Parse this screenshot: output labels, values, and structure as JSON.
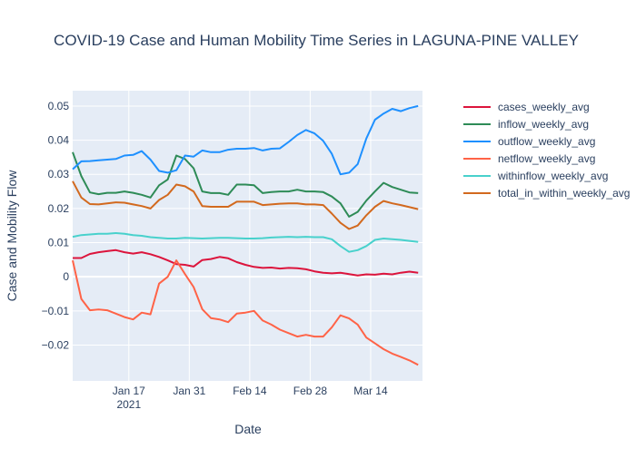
{
  "chart_data": {
    "type": "line",
    "title": "COVID-19 Case and Human Mobility Time Series in LAGUNA-PINE VALLEY",
    "xlabel": "Date",
    "ylabel": "Case and Mobility Flow",
    "xlim": [
      "2021-01-04",
      "2021-03-26"
    ],
    "ylim": [
      -0.0305,
      0.0545
    ],
    "x_ticks": [
      {
        "date": "2021-01-17",
        "label": "Jan 17",
        "sublabel": "2021"
      },
      {
        "date": "2021-01-31",
        "label": "Jan 31",
        "sublabel": ""
      },
      {
        "date": "2021-02-14",
        "label": "Feb 14",
        "sublabel": ""
      },
      {
        "date": "2021-02-28",
        "label": "Feb 28",
        "sublabel": ""
      },
      {
        "date": "2021-03-14",
        "label": "Mar 14",
        "sublabel": ""
      }
    ],
    "y_ticks": [
      {
        "value": -0.02,
        "label": "−0.02"
      },
      {
        "value": -0.01,
        "label": "−0.01"
      },
      {
        "value": 0,
        "label": "0"
      },
      {
        "value": 0.01,
        "label": "0.01"
      },
      {
        "value": 0.02,
        "label": "0.02"
      },
      {
        "value": 0.03,
        "label": "0.03"
      },
      {
        "value": 0.04,
        "label": "0.04"
      },
      {
        "value": 0.05,
        "label": "0.05"
      }
    ],
    "grid": true,
    "legend_position": "right",
    "background": "#e5ecf6",
    "x": [
      "2021-01-04",
      "2021-01-06",
      "2021-01-08",
      "2021-01-10",
      "2021-01-12",
      "2021-01-14",
      "2021-01-16",
      "2021-01-18",
      "2021-01-20",
      "2021-01-22",
      "2021-01-24",
      "2021-01-26",
      "2021-01-28",
      "2021-01-30",
      "2021-02-01",
      "2021-02-03",
      "2021-02-05",
      "2021-02-07",
      "2021-02-09",
      "2021-02-11",
      "2021-02-13",
      "2021-02-15",
      "2021-02-17",
      "2021-02-19",
      "2021-02-21",
      "2021-02-23",
      "2021-02-25",
      "2021-02-27",
      "2021-03-01",
      "2021-03-03",
      "2021-03-05",
      "2021-03-07",
      "2021-03-09",
      "2021-03-11",
      "2021-03-13",
      "2021-03-15",
      "2021-03-17",
      "2021-03-19",
      "2021-03-21",
      "2021-03-23",
      "2021-03-25"
    ],
    "series": [
      {
        "name": "cases_weekly_avg",
        "color": "#dc143c",
        "values": [
          0.0055,
          0.0055,
          0.0067,
          0.0072,
          0.0075,
          0.0078,
          0.0072,
          0.0068,
          0.0072,
          0.0066,
          0.0058,
          0.0048,
          0.0037,
          0.0035,
          0.003,
          0.0049,
          0.0052,
          0.0058,
          0.0054,
          0.0043,
          0.0035,
          0.0029,
          0.0026,
          0.0027,
          0.0024,
          0.0026,
          0.0025,
          0.0022,
          0.0016,
          0.0012,
          0.001,
          0.0012,
          0.0008,
          0.0004,
          0.0007,
          0.0006,
          0.0009,
          0.0007,
          0.0012,
          0.0015,
          0.0012
        ]
      },
      {
        "name": "inflow_weekly_avg",
        "color": "#2e8b57",
        "values": [
          0.0365,
          0.0295,
          0.0247,
          0.0242,
          0.0246,
          0.0246,
          0.025,
          0.0246,
          0.024,
          0.0232,
          0.0268,
          0.0285,
          0.0355,
          0.0345,
          0.0318,
          0.025,
          0.0245,
          0.0245,
          0.024,
          0.027,
          0.027,
          0.0268,
          0.0245,
          0.0248,
          0.025,
          0.025,
          0.0255,
          0.025,
          0.025,
          0.0248,
          0.0235,
          0.0215,
          0.0176,
          0.019,
          0.0223,
          0.025,
          0.0275,
          0.0263,
          0.0255,
          0.0247,
          0.0245
        ]
      },
      {
        "name": "outflow_weekly_avg",
        "color": "#1e90ff",
        "values": [
          0.0315,
          0.0338,
          0.0339,
          0.0341,
          0.0343,
          0.0345,
          0.0355,
          0.0357,
          0.0368,
          0.0343,
          0.031,
          0.0305,
          0.0312,
          0.0355,
          0.0352,
          0.037,
          0.0365,
          0.0365,
          0.0372,
          0.0375,
          0.0375,
          0.0377,
          0.037,
          0.0375,
          0.0376,
          0.0395,
          0.0415,
          0.043,
          0.042,
          0.0398,
          0.036,
          0.03,
          0.0305,
          0.033,
          0.0405,
          0.046,
          0.0478,
          0.0492,
          0.0485,
          0.0494,
          0.05
        ]
      },
      {
        "name": "netflow_weekly_avg",
        "color": "#ff6347",
        "values": [
          0.0048,
          -0.0065,
          -0.0098,
          -0.0096,
          -0.0098,
          -0.0108,
          -0.0118,
          -0.0125,
          -0.0105,
          -0.011,
          -0.002,
          0.0,
          0.0048,
          0.0008,
          -0.003,
          -0.0095,
          -0.0121,
          -0.0125,
          -0.0133,
          -0.0108,
          -0.0105,
          -0.01,
          -0.0128,
          -0.014,
          -0.0155,
          -0.0165,
          -0.0175,
          -0.017,
          -0.0175,
          -0.0175,
          -0.0148,
          -0.0113,
          -0.0122,
          -0.014,
          -0.0178,
          -0.0195,
          -0.0212,
          -0.0225,
          -0.0235,
          -0.0245,
          -0.0258
        ]
      },
      {
        "name": "withinflow_weekly_avg",
        "color": "#48d1cc",
        "values": [
          0.0117,
          0.0122,
          0.0124,
          0.0126,
          0.0126,
          0.0128,
          0.0126,
          0.0122,
          0.012,
          0.0116,
          0.0114,
          0.0112,
          0.0112,
          0.0114,
          0.0113,
          0.0112,
          0.0113,
          0.0114,
          0.0114,
          0.0113,
          0.0112,
          0.0112,
          0.0113,
          0.0115,
          0.0116,
          0.0117,
          0.0116,
          0.0117,
          0.0116,
          0.0116,
          0.011,
          0.009,
          0.0073,
          0.0078,
          0.009,
          0.0108,
          0.0112,
          0.011,
          0.0108,
          0.0105,
          0.0102
        ]
      },
      {
        "name": "total_in_within_weekly_avg",
        "color": "#d2691e",
        "values": [
          0.028,
          0.0232,
          0.0213,
          0.0212,
          0.0215,
          0.0218,
          0.0217,
          0.0212,
          0.0207,
          0.02,
          0.0225,
          0.024,
          0.027,
          0.0265,
          0.025,
          0.0207,
          0.0205,
          0.0205,
          0.0205,
          0.022,
          0.022,
          0.022,
          0.021,
          0.0212,
          0.0214,
          0.0215,
          0.0215,
          0.0212,
          0.0212,
          0.021,
          0.0185,
          0.0158,
          0.014,
          0.015,
          0.018,
          0.0205,
          0.0222,
          0.0215,
          0.021,
          0.0204,
          0.0198
        ]
      }
    ]
  }
}
